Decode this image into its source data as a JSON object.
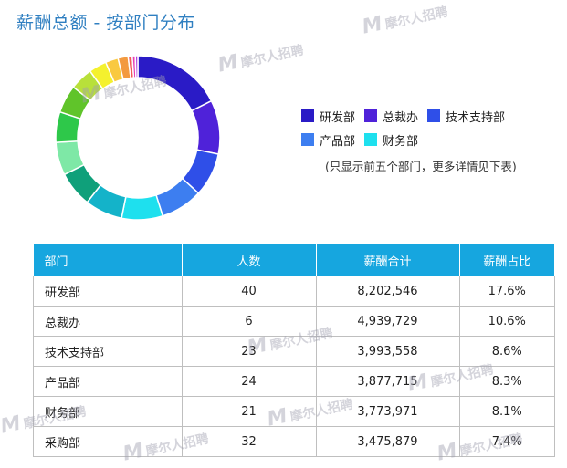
{
  "title": "薪酬总额 - 按部门分布",
  "legend": [
    {
      "label": "研发部",
      "color": "#2a1bc6"
    },
    {
      "label": "总裁办",
      "color": "#4f22d9"
    },
    {
      "label": "技术支持部",
      "color": "#2f4fe8"
    },
    {
      "label": "产品部",
      "color": "#3d7ef0"
    },
    {
      "label": "财务部",
      "color": "#1ee0ee"
    }
  ],
  "note": "(只显示前五个部门，更多详情见下表)",
  "table": {
    "headers": [
      "部门",
      "人数",
      "薪酬合计",
      "薪酬占比"
    ],
    "rows": [
      [
        "研发部",
        "40",
        "8,202,546",
        "17.6%"
      ],
      [
        "总裁办",
        "6",
        "4,939,729",
        "10.6%"
      ],
      [
        "技术支持部",
        "23",
        "3,993,558",
        "8.6%"
      ],
      [
        "产品部",
        "24",
        "3,877,715",
        "8.3%"
      ],
      [
        "财务部",
        "21",
        "3,773,971",
        "8.1%"
      ],
      [
        "采购部",
        "32",
        "3,475,879",
        "7.4%"
      ]
    ]
  },
  "watermark": {
    "mark": "M",
    "text": "摩尔人招聘"
  },
  "chart_data": {
    "type": "pie",
    "style": "donut",
    "slices": [
      {
        "label": "研发部",
        "value": 17.6,
        "color": "#2a1bc6"
      },
      {
        "label": "总裁办",
        "value": 10.6,
        "color": "#4f22d9"
      },
      {
        "label": "技术支持部",
        "value": 8.6,
        "color": "#2f4fe8"
      },
      {
        "label": "产品部",
        "value": 8.3,
        "color": "#3d7ef0"
      },
      {
        "label": "财务部",
        "value": 8.1,
        "color": "#1ee0ee"
      },
      {
        "label": "采购部",
        "value": 7.4,
        "color": "#14b3c9"
      },
      {
        "label": "",
        "value": 7.0,
        "color": "#0fa07a"
      },
      {
        "label": "",
        "value": 6.5,
        "color": "#7ee8a6"
      },
      {
        "label": "",
        "value": 6.0,
        "color": "#2ec84a"
      },
      {
        "label": "",
        "value": 5.5,
        "color": "#60c42a"
      },
      {
        "label": "",
        "value": 4.5,
        "color": "#b8e03a"
      },
      {
        "label": "",
        "value": 3.5,
        "color": "#f4f12e"
      },
      {
        "label": "",
        "value": 2.5,
        "color": "#f9c940"
      },
      {
        "label": "",
        "value": 2.0,
        "color": "#f39a3f"
      },
      {
        "label": "",
        "value": 0.8,
        "color": "#f25a5a"
      },
      {
        "label": "",
        "value": 0.6,
        "color": "#e840b4"
      },
      {
        "label": "",
        "value": 0.5,
        "color": "#b43ae0"
      }
    ]
  }
}
